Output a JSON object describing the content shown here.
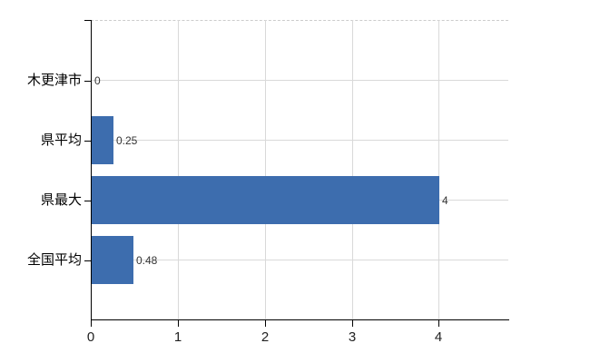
{
  "chart_data": {
    "type": "bar",
    "orientation": "horizontal",
    "title": "",
    "xlabel": "",
    "ylabel": "",
    "categories": [
      "木更津市",
      "県平均",
      "県最大",
      "全国平均"
    ],
    "values": [
      0,
      0.25,
      4,
      0.48
    ],
    "value_labels": [
      "0",
      "0.25",
      "4",
      "0.48"
    ],
    "x_ticks": [
      0,
      1,
      2,
      3,
      4
    ],
    "x_tick_labels": [
      "0",
      "1",
      "2",
      "3",
      "4"
    ],
    "xlim": [
      0,
      4.8
    ],
    "grid": true,
    "legend": false,
    "bar_color": "#3d6dae",
    "gridline_color": "#d9d9d9",
    "axis_color": "#000000",
    "background_color": "#ffffff"
  }
}
